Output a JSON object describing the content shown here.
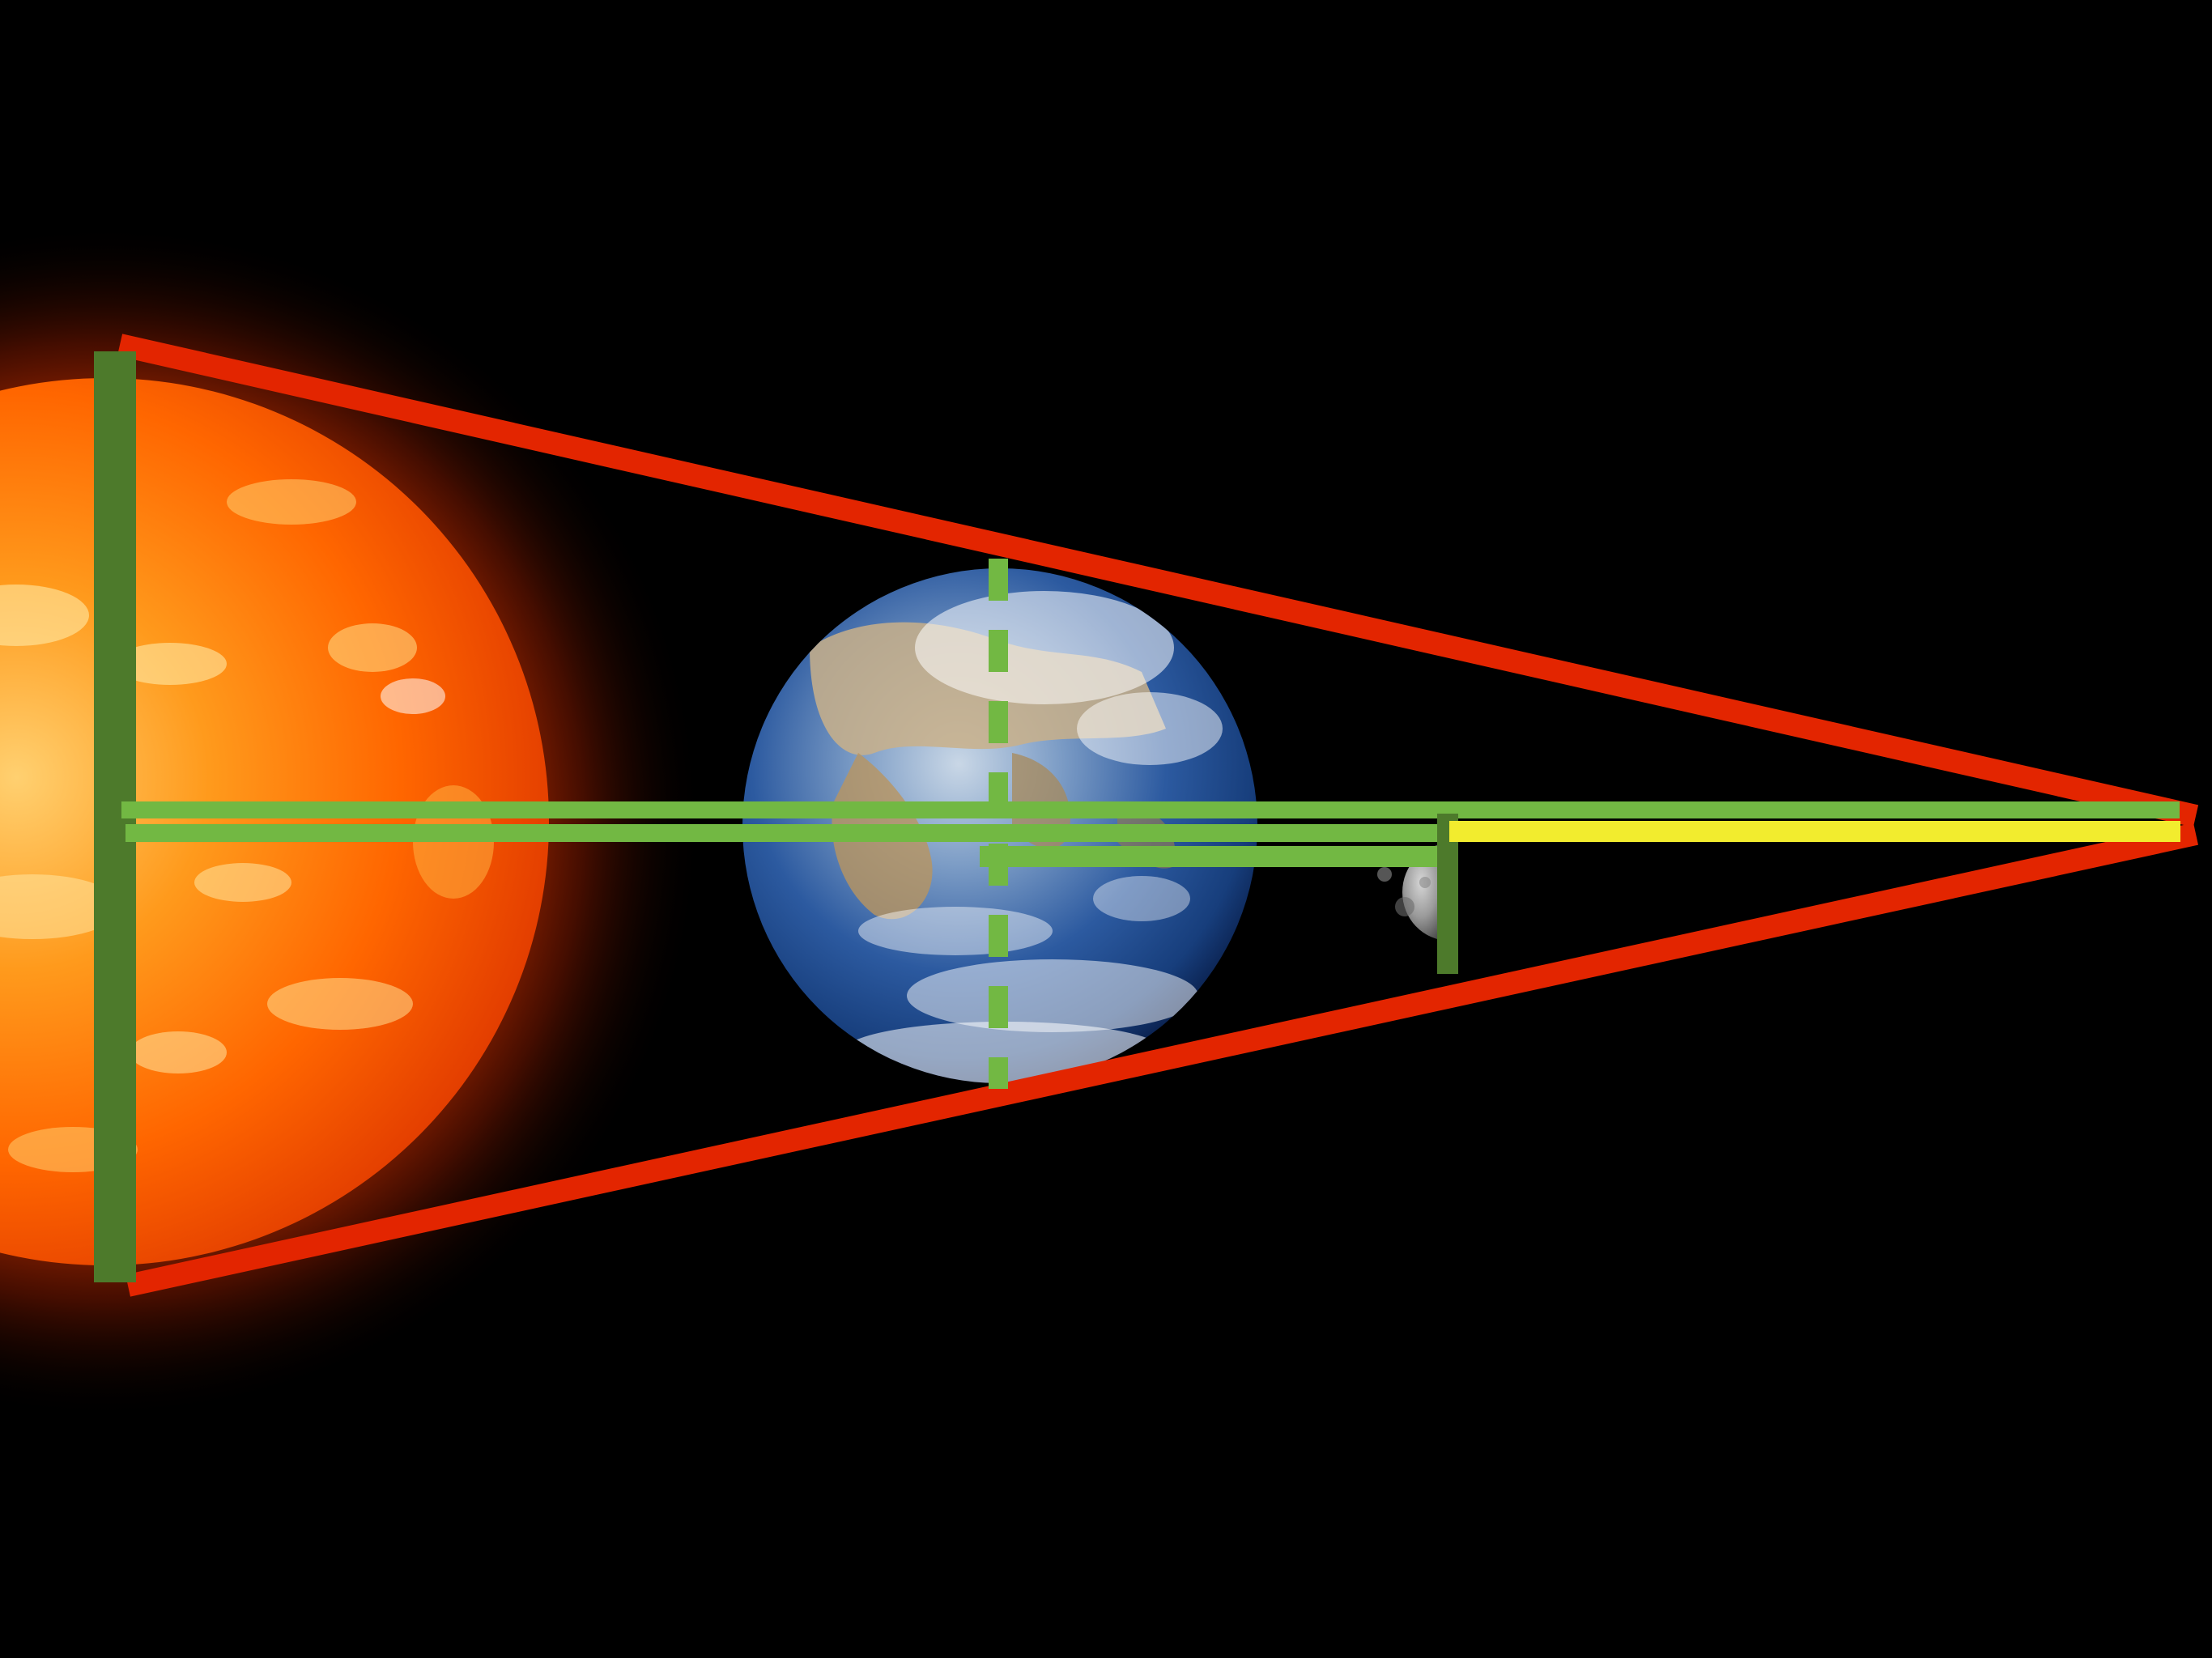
{
  "scene": {
    "background": "#000000",
    "bodies": [
      {
        "id": "sun",
        "name": "Sun",
        "colors": [
          "#fff6c8",
          "#ffb22a",
          "#ff6a00",
          "#e43a00",
          "#a51e00"
        ]
      },
      {
        "id": "earth",
        "name": "Earth",
        "colors": [
          "#e9f0f8",
          "#5f89c0",
          "#1f4a8c",
          "#0d2656"
        ]
      },
      {
        "id": "moon",
        "name": "Moon",
        "colors": [
          "#d7d7d7",
          "#9a9a9a",
          "#555555"
        ]
      }
    ],
    "line_colors": {
      "shadow_cone": "#e32500",
      "diameter_marker": "#4d7a2b",
      "distance_line": "#72b843",
      "umbra_length": "#f2ec2e"
    }
  }
}
